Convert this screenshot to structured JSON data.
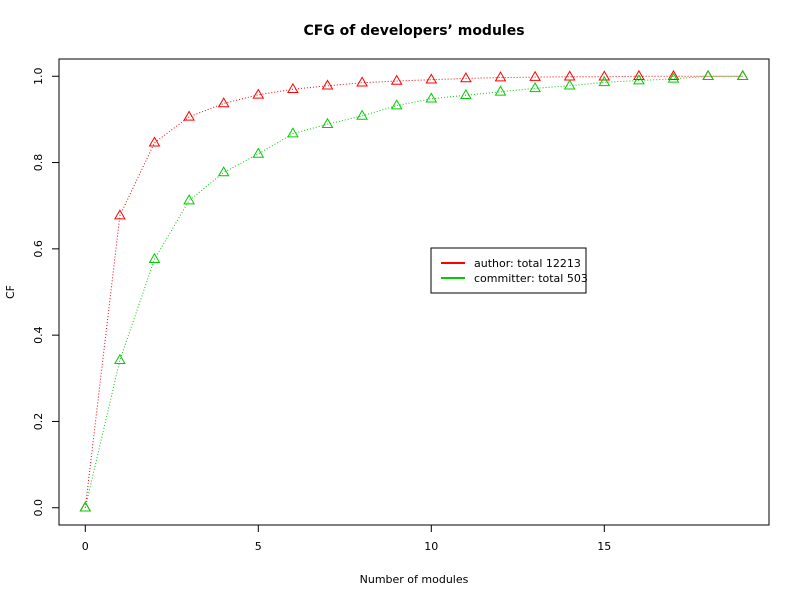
{
  "chart_data": {
    "type": "line",
    "title": "CFG of developers’ modules",
    "xlabel": "Number of modules",
    "ylabel": "CF",
    "xlim": [
      -0.76,
      19.76
    ],
    "ylim": [
      -0.04,
      1.04
    ],
    "xticks": [
      0,
      5,
      10,
      15
    ],
    "yticks": [
      0.0,
      0.2,
      0.4,
      0.6,
      0.8,
      1.0
    ],
    "xtick_labels": [
      "0",
      "5",
      "10",
      "15"
    ],
    "ytick_labels": [
      "0.0",
      "0.2",
      "0.4",
      "0.6",
      "0.8",
      "1.0"
    ],
    "grid": false,
    "legend_position": "center-right",
    "series": [
      {
        "name": "author: total 12213",
        "color": "#ff0000",
        "marker": "triangle",
        "line_style": "dotted",
        "x": [
          0,
          1,
          2,
          3,
          4,
          5,
          6,
          7,
          8,
          9,
          10,
          11,
          12,
          13,
          14,
          15,
          16,
          17,
          18,
          19
        ],
        "y": [
          0.0,
          0.677,
          0.846,
          0.906,
          0.937,
          0.957,
          0.97,
          0.978,
          0.985,
          0.989,
          0.992,
          0.995,
          0.997,
          0.998,
          0.999,
          0.999,
          1.0,
          1.0,
          1.0,
          1.0
        ]
      },
      {
        "name": "committer: total 503",
        "color": "#00cc00",
        "marker": "triangle",
        "line_style": "dotted",
        "x": [
          0,
          1,
          2,
          3,
          4,
          5,
          6,
          7,
          8,
          9,
          10,
          11,
          12,
          13,
          14,
          15,
          16,
          17,
          18,
          19
        ],
        "y": [
          0.0,
          0.342,
          0.576,
          0.712,
          0.777,
          0.82,
          0.867,
          0.889,
          0.908,
          0.932,
          0.948,
          0.956,
          0.964,
          0.972,
          0.978,
          0.986,
          0.99,
          0.994,
          1.0,
          1.0
        ]
      }
    ]
  }
}
